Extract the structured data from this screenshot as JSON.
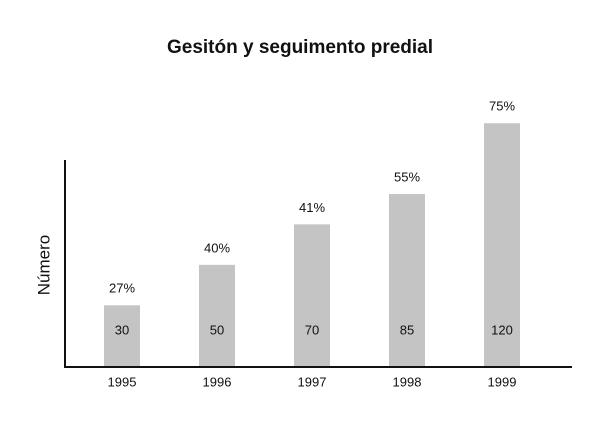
{
  "chart_data": {
    "type": "bar",
    "title": "Gesitón y seguimento predial",
    "y_label": "Número",
    "categories": [
      "1995",
      "1996",
      "1997",
      "1998",
      "1999"
    ],
    "values": [
      30,
      50,
      70,
      85,
      120
    ],
    "annotations": [
      "27%",
      "40%",
      "41%",
      "55%",
      "75%"
    ],
    "color": "#c4c4c4",
    "ylim": [
      0,
      130
    ]
  }
}
